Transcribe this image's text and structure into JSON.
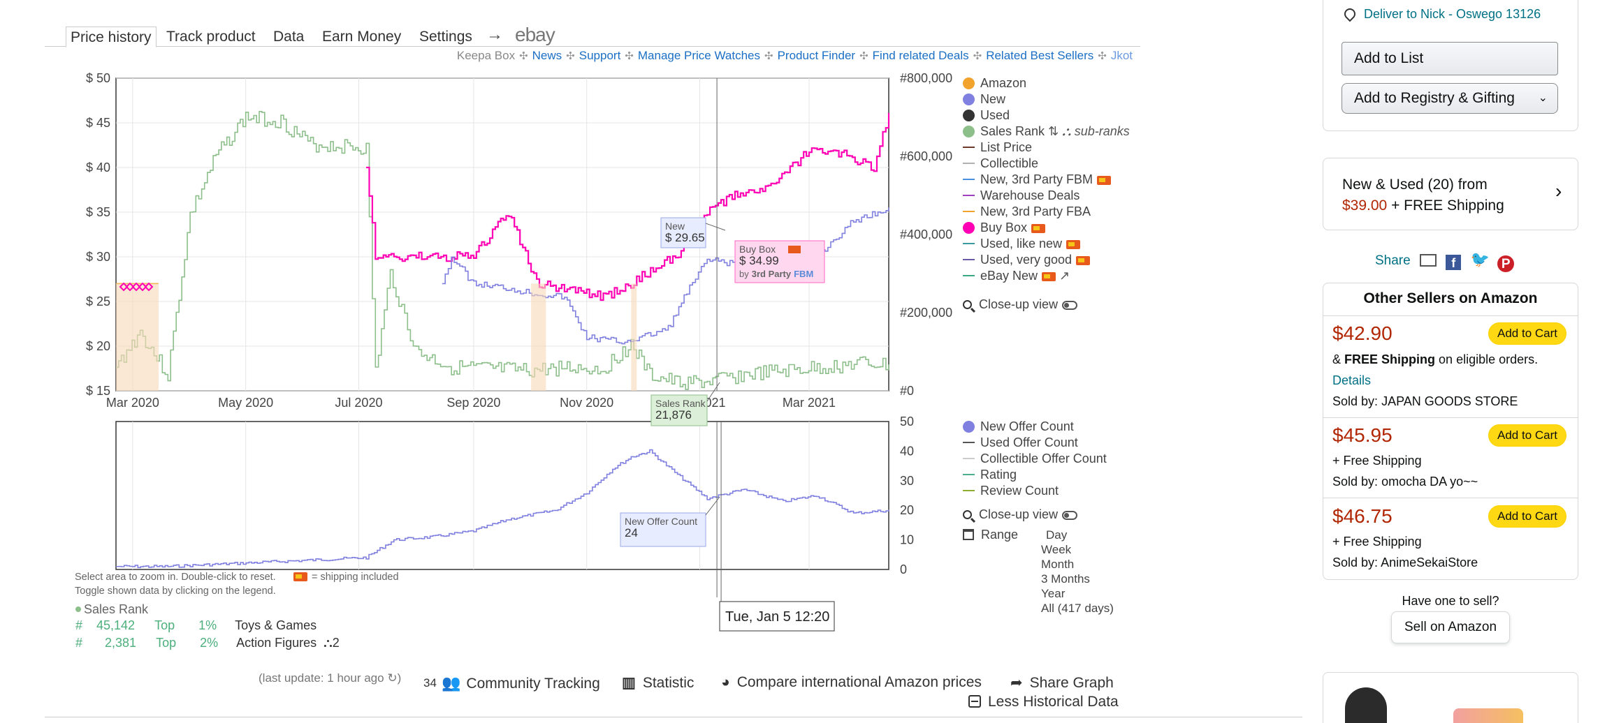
{
  "tabs": [
    "Price history",
    "Track product",
    "Data",
    "Earn Money",
    "Settings"
  ],
  "tabs_active": "Price history",
  "tab_arrow": "→",
  "tab_ebay": "ebay",
  "links": [
    {
      "label": "Keepa Box",
      "style": "grey"
    },
    {
      "label": "News",
      "style": "link"
    },
    {
      "label": "Support",
      "style": "link"
    },
    {
      "label": "Manage Price Watches",
      "style": "link"
    },
    {
      "label": "Product Finder",
      "style": "link"
    },
    {
      "label": "Find related Deals",
      "style": "link"
    },
    {
      "label": "Related Best Sellers",
      "style": "link"
    },
    {
      "label": "Jkot",
      "style": "light"
    }
  ],
  "link_separator": "✣",
  "chart_data": [
    {
      "type": "line",
      "title": "",
      "y_left_ticks": [
        "$ 50",
        "$ 45",
        "$ 40",
        "$ 35",
        "$ 30",
        "$ 25",
        "$ 20",
        "$ 15"
      ],
      "y_left_range": [
        15,
        50
      ],
      "y_right_ticks": [
        "#800,000",
        "#600,000",
        "#400,000",
        "#200,000",
        "#0"
      ],
      "y_right_range": [
        0,
        800000
      ],
      "x_ticks": [
        "Mar 2020",
        "May 2020",
        "Jul 2020",
        "Sep 2020",
        "Nov 2020",
        "Jan 2021",
        "Mar 2021"
      ],
      "x_range": [
        "2020-02-21",
        "2021-04-13"
      ],
      "series": [
        {
          "name": "Sales Rank",
          "color": "#8dbf8b",
          "axis": "right",
          "x": [
            "2020-02-21",
            "2020-03-05",
            "2020-03-20",
            "2020-04-01",
            "2020-04-15",
            "2020-05-01",
            "2020-05-20",
            "2020-06-05",
            "2020-06-25",
            "2020-07-05",
            "2020-07-10",
            "2020-07-18",
            "2020-08-01",
            "2020-08-20",
            "2020-09-10",
            "2020-10-01",
            "2020-10-20",
            "2020-11-10",
            "2020-11-25",
            "2020-12-05",
            "2020-12-20",
            "2021-01-05",
            "2021-01-25",
            "2021-02-15",
            "2021-03-10",
            "2021-03-30",
            "2021-04-13"
          ],
          "y": [
            60000,
            150000,
            40000,
            450000,
            600000,
            700000,
            690000,
            630000,
            625000,
            620000,
            50000,
            300000,
            100000,
            60000,
            55000,
            50000,
            60000,
            55000,
            120000,
            40000,
            20000,
            21876,
            40000,
            50000,
            60000,
            70000,
            65000
          ]
        },
        {
          "name": "Buy Box",
          "color": "#ff00b4",
          "axis": "left",
          "x": [
            "2020-07-05",
            "2020-07-10",
            "2020-07-20",
            "2020-08-10",
            "2020-09-01",
            "2020-09-20",
            "2020-10-05",
            "2020-10-20",
            "2020-11-10",
            "2020-11-25",
            "2020-12-10",
            "2020-12-25",
            "2021-01-05",
            "2021-01-20",
            "2021-02-10",
            "2021-03-01",
            "2021-03-20",
            "2021-04-05",
            "2021-04-13"
          ],
          "y": [
            40,
            29.99,
            29.99,
            29.99,
            29.99,
            34.99,
            27,
            26.5,
            25.5,
            27,
            29,
            31,
            34.99,
            37,
            38,
            42,
            41.5,
            40,
            46
          ]
        },
        {
          "name": "New",
          "color": "#8080e0",
          "axis": "left",
          "x": [
            "2020-02-21",
            "2020-08-15",
            "2020-08-20",
            "2020-09-01",
            "2020-09-20",
            "2020-10-01",
            "2020-10-20",
            "2020-11-01",
            "2020-11-20",
            "2020-12-01",
            "2020-12-15",
            "2020-12-25",
            "2021-01-05",
            "2021-01-25",
            "2021-02-15",
            "2021-03-05",
            "2021-03-25",
            "2021-04-13"
          ],
          "y": [
            null,
            27,
            29.99,
            27,
            26.5,
            26,
            25.5,
            21,
            20.5,
            21,
            22,
            26,
            29.65,
            29,
            30,
            30,
            34,
            35.5
          ]
        },
        {
          "name": "Amazon",
          "color": "#f1a32b",
          "axis": "left",
          "x": [
            "2020-02-21",
            "2020-03-15"
          ],
          "y": [
            27,
            27
          ]
        }
      ],
      "tooltips": [
        {
          "label": "New",
          "value": "$ 29.65"
        },
        {
          "label": "Buy Box",
          "value": "$ 34.99",
          "by": "by",
          "seller": "3rd Party",
          "fulfil": "FBM"
        },
        {
          "label": "Sales Rank",
          "value": "21,876"
        }
      ]
    },
    {
      "type": "line",
      "title": "",
      "y_right_ticks": [
        "50",
        "40",
        "30",
        "20",
        "10",
        "0"
      ],
      "y_right_range": [
        0,
        50
      ],
      "x_range": [
        "2020-02-21",
        "2021-04-13"
      ],
      "series": [
        {
          "name": "New Offer Count",
          "color": "#8080e0",
          "x": [
            "2020-02-21",
            "2020-03-20",
            "2020-07-05",
            "2020-07-20",
            "2020-08-10",
            "2020-09-01",
            "2020-09-20",
            "2020-10-15",
            "2020-11-01",
            "2020-11-15",
            "2020-11-25",
            "2020-12-05",
            "2020-12-20",
            "2021-01-05",
            "2021-01-25",
            "2021-02-15",
            "2021-03-05",
            "2021-03-25",
            "2021-04-13"
          ],
          "y": [
            1,
            1,
            4,
            10,
            11,
            13,
            17,
            20,
            26,
            34,
            38,
            40,
            32,
            24,
            27,
            23,
            25,
            19,
            20
          ]
        }
      ],
      "tooltips": [
        {
          "label": "New Offer Count",
          "value": "24"
        }
      ]
    }
  ],
  "crosshair_time": "Tue, Jan 5 12:20",
  "legend_main": [
    {
      "label": "Amazon",
      "kind": "dot",
      "color": "#f1a32b"
    },
    {
      "label": "New",
      "kind": "dot",
      "color": "#8080e0"
    },
    {
      "label": "Used",
      "kind": "dot",
      "color": "#333333"
    },
    {
      "label": "Sales Rank",
      "kind": "dot",
      "color": "#8dbf8b"
    },
    {
      "label": "List Price",
      "kind": "dash",
      "color": "#6b3a2a"
    },
    {
      "label": "Collectible",
      "kind": "dash",
      "color": "#b0b0b0"
    },
    {
      "label": "New, 3rd Party FBM",
      "kind": "dash",
      "color": "#4b8fe0"
    },
    {
      "label": "Warehouse Deals",
      "kind": "dash",
      "color": "#a040c0"
    },
    {
      "label": "New, 3rd Party FBA",
      "kind": "dash",
      "color": "#f1a32b"
    },
    {
      "label": "Buy Box",
      "kind": "dot",
      "color": "#ff00b4"
    },
    {
      "label": "Used, like new",
      "kind": "dash",
      "color": "#3a9aa0"
    },
    {
      "label": "Used, very good",
      "kind": "dash",
      "color": "#6a58a8"
    },
    {
      "label": "eBay New",
      "kind": "dash",
      "color": "#3aa882"
    }
  ],
  "sub_ranks": "sub-ranks",
  "closeup": "Close-up view",
  "legend_sub": [
    {
      "label": "New Offer Count",
      "kind": "dot",
      "color": "#8080e0"
    },
    {
      "label": "Used Offer Count",
      "kind": "dash",
      "color": "#555555"
    },
    {
      "label": "Collectible Offer Count",
      "kind": "dash",
      "color": "#cccccc"
    },
    {
      "label": "Rating",
      "kind": "dash",
      "color": "#4caf8c"
    },
    {
      "label": "Review Count",
      "kind": "dash",
      "color": "#8fae2f"
    }
  ],
  "range_label": "Range",
  "range_options": [
    "Day",
    "Week",
    "Month",
    "3 Months",
    "Year",
    "All (417 days)"
  ],
  "notes": {
    "zoom": "Select area to zoom in. Double-click to reset.",
    "shipping": "= shipping included",
    "toggle": "Toggle shown data by clicking on the legend."
  },
  "ranks": {
    "title": "Sales Rank",
    "rows": [
      {
        "hash": "#",
        "rank": "45,142",
        "top": "Top",
        "pct": "1%",
        "cat": "Toys & Games"
      },
      {
        "hash": "#",
        "rank": "2,381",
        "top": "Top",
        "pct": "2%",
        "cat": "Action Figures",
        "sub": "2"
      }
    ]
  },
  "bottom": {
    "last_update": "(last update: 1 hour ago",
    "tracking_count": "34",
    "community": "Community Tracking",
    "statistic": "Statistic",
    "compare": "Compare international Amazon prices",
    "share": "Share Graph",
    "less": "Less Historical Data"
  },
  "right": {
    "deliver": "Deliver to Nick - Oswego 13126",
    "add_list": "Add to List",
    "registry": "Add to Registry & Gifting",
    "new_used": "New & Used (20) from",
    "new_used_price": "$39.00",
    "new_used_ship": "+ FREE Shipping",
    "share": "Share",
    "other_title": "Other Sellers on Amazon",
    "add_to_cart": "Add to Cart",
    "sellers": [
      {
        "price": "$42.90",
        "ship_prefix": "&",
        "ship_bold": "FREE Shipping",
        "ship_suffix": "on eligible orders.",
        "details": "Details",
        "sold_by": "Sold by:",
        "seller": "JAPAN GOODS STORE"
      },
      {
        "price": "$45.95",
        "ship_prefix": "+ Free Shipping",
        "sold_by": "Sold by:",
        "seller": "omocha DA yo~~"
      },
      {
        "price": "$46.75",
        "ship_prefix": "+ Free Shipping",
        "sold_by": "Sold by:",
        "seller": "AnimeSekaiStore"
      }
    ],
    "have_one": "Have one to sell?",
    "sell": "Sell on Amazon"
  }
}
